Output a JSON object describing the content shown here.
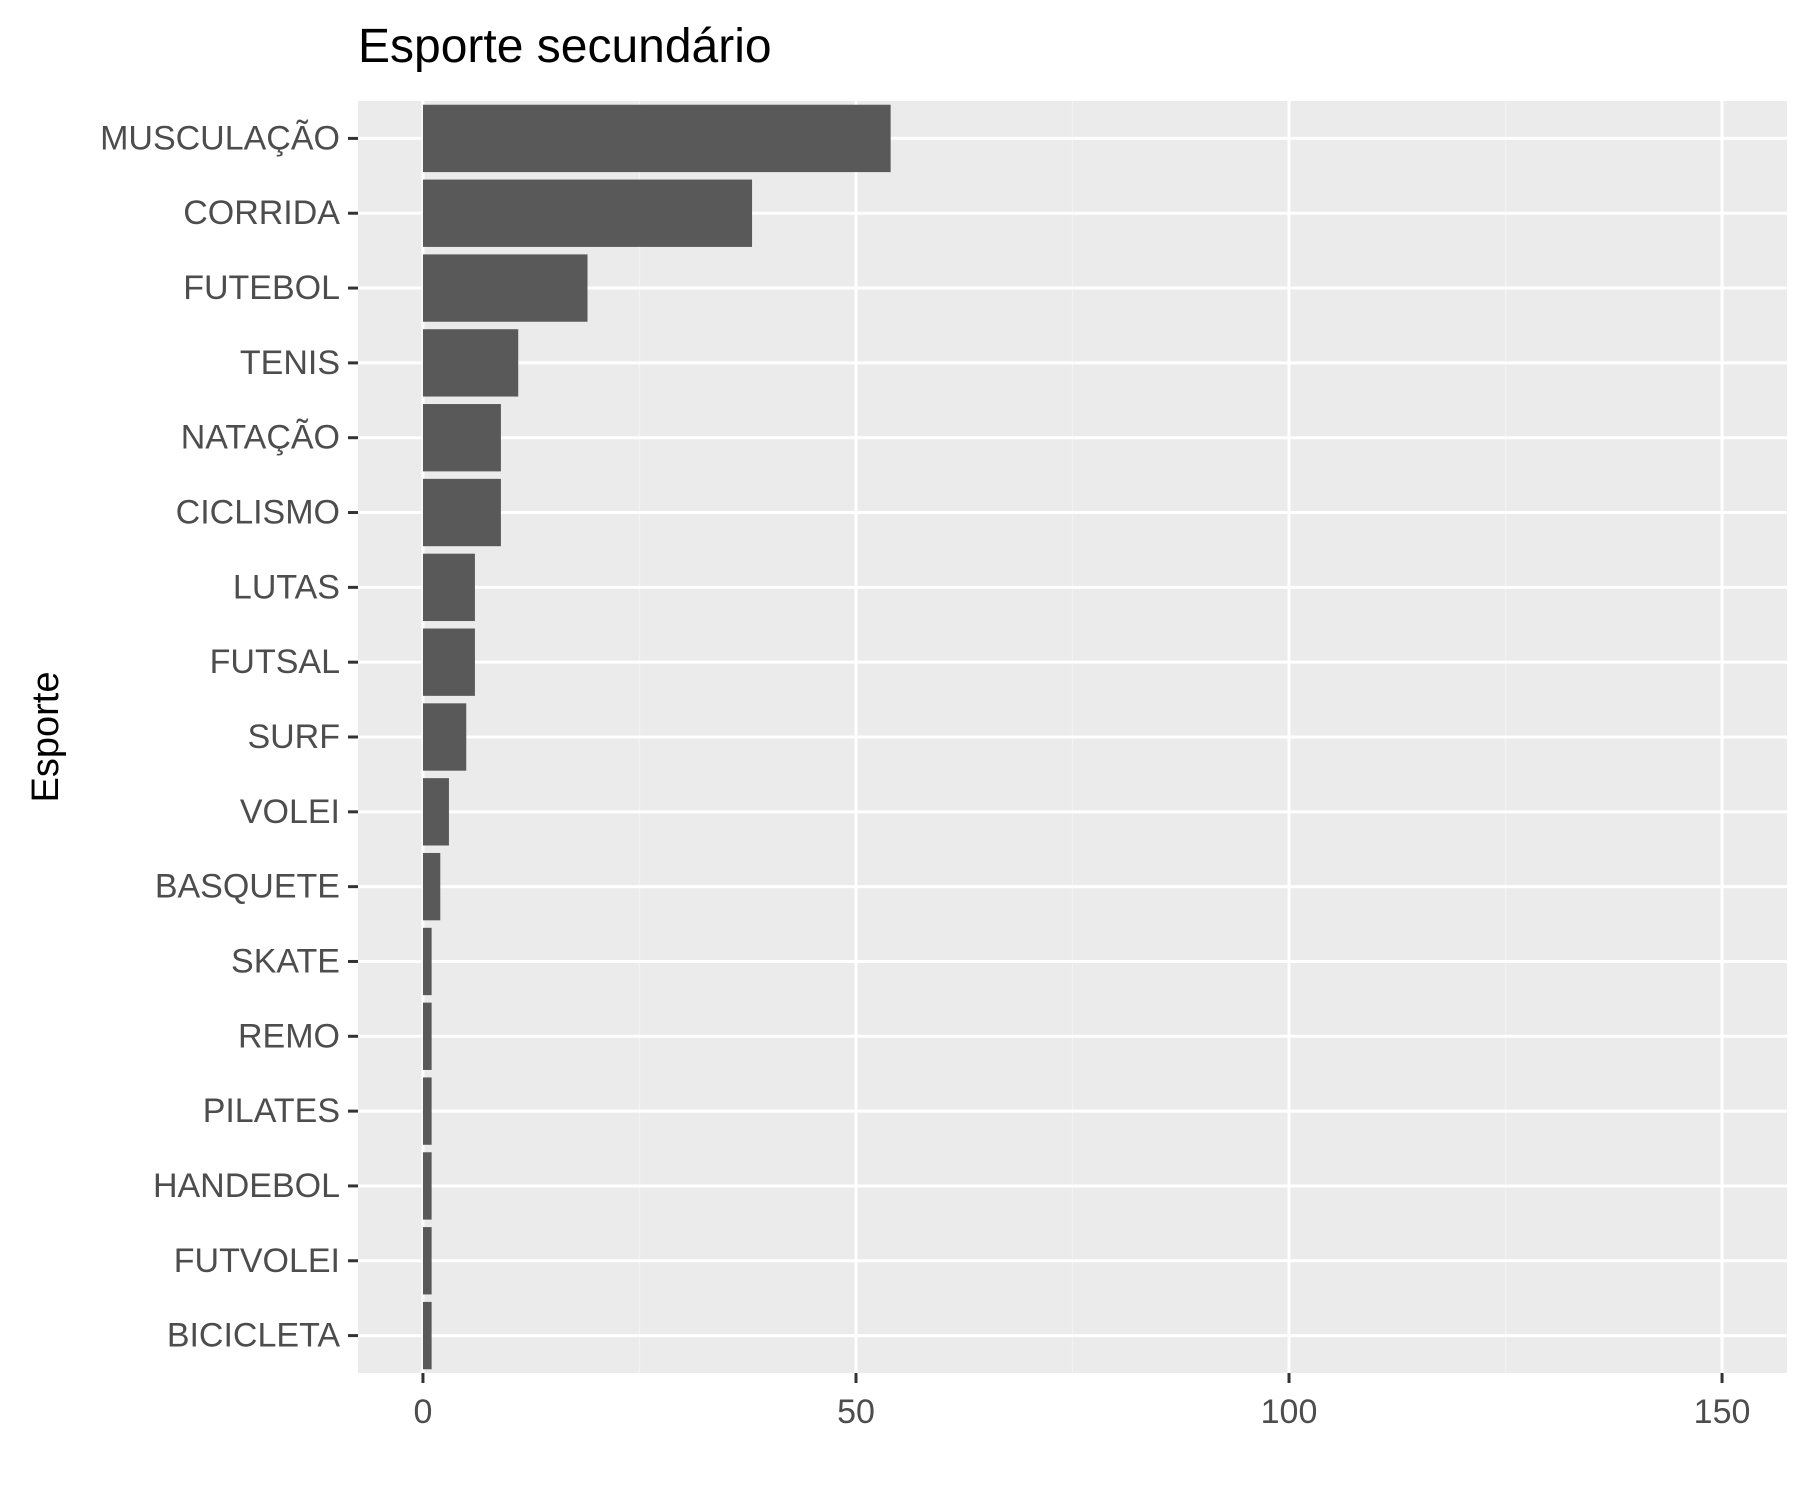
{
  "chart_data": {
    "type": "bar",
    "orientation": "horizontal",
    "title": "Esporte secundário",
    "xlabel": "",
    "ylabel": "Esporte",
    "categories": [
      "MUSCULAÇÃO",
      "CORRIDA",
      "FUTEBOL",
      "TENIS",
      "NATAÇÃO",
      "CICLISMO",
      "LUTAS",
      "FUTSAL",
      "SURF",
      "VOLEI",
      "BASQUETE",
      "SKATE",
      "REMO",
      "PILATES",
      "HANDEBOL",
      "FUTVOLEI",
      "BICICLETA"
    ],
    "values": [
      54,
      38,
      19,
      11,
      9,
      9,
      6,
      6,
      5,
      3,
      2,
      1,
      1,
      1,
      1,
      1,
      1
    ],
    "xlim": [
      -7.5,
      157.5
    ],
    "xticks": [
      0,
      50,
      100,
      150
    ],
    "xtick_labels": [
      "0",
      "50",
      "100",
      "150"
    ],
    "grid": true,
    "legend": "none",
    "colors": {
      "bar": "#595959",
      "panel_background": "#ebebeb",
      "grid_major": "#ffffff",
      "grid_minor": "#f2f2f2",
      "tick_label": "#4d4d4d",
      "title": "#000000"
    }
  }
}
